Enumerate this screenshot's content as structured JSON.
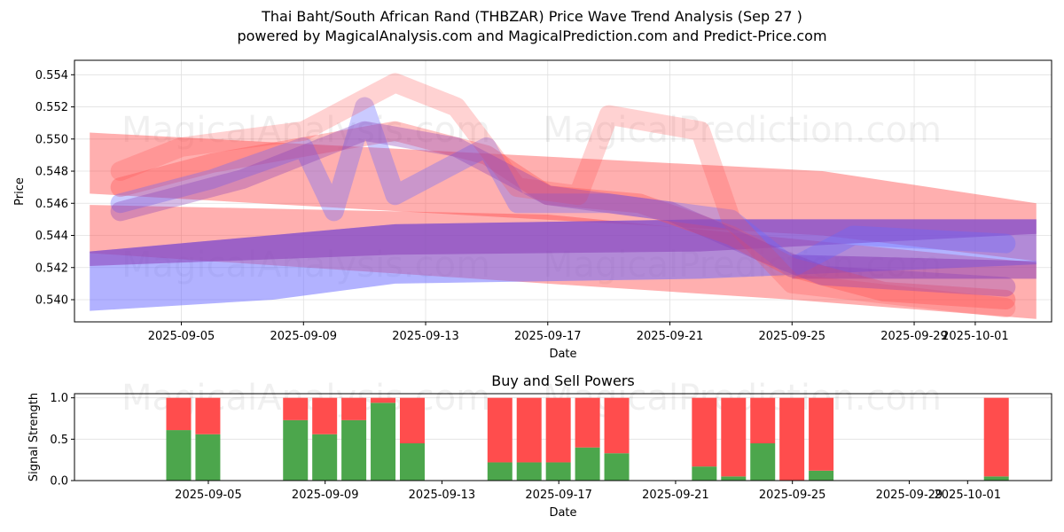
{
  "header": {
    "title": "Thai Baht/South African Rand (THBZAR) Price Wave Trend Analysis (Sep 27 )",
    "subtitle": "powered by MagicalAnalysis.com and MagicalPrediction.com and Predict-Price.com"
  },
  "watermarks": [
    "MagicalAnalysis.com",
    "MagicalPrediction.com"
  ],
  "colors": {
    "bearish_band": "#ff4d4d",
    "bullish_band": "#6666ff",
    "buy": "#4ca64c",
    "sell": "#ff4d4d",
    "grid": "#e0e0e0"
  },
  "chart_data": [
    {
      "type": "area",
      "name": "price-wave",
      "title": "",
      "xlabel": "Date",
      "ylabel": "Price",
      "ylim": [
        0.53862,
        0.5549
      ],
      "xlim": [
        "2025-09-01T12:00",
        "2025-10-03T12:00"
      ],
      "yticks": [
        "0.540",
        "0.542",
        "0.544",
        "0.546",
        "0.548",
        "0.550",
        "0.552",
        "0.554"
      ],
      "xticks": [
        "2025-09-05",
        "2025-09-09",
        "2025-09-13",
        "2025-09-17",
        "2025-09-21",
        "2025-09-25",
        "2025-09-29",
        "2025-10-01"
      ],
      "grid": true,
      "series": [
        {
          "name": "wave-band-1",
          "color": "red",
          "alpha": 0.45,
          "upper": [
            [
              "2025-09-02",
              0.5504
            ],
            [
              "2025-09-26",
              0.548
            ],
            [
              "2025-10-03",
              0.546
            ]
          ],
          "lower": [
            [
              "2025-09-02",
              0.5466
            ],
            [
              "2025-09-26",
              0.544
            ],
            [
              "2025-10-03",
              0.5424
            ]
          ]
        },
        {
          "name": "wave-band-2",
          "color": "red",
          "alpha": 0.45,
          "upper": [
            [
              "2025-09-02",
              0.5459
            ],
            [
              "2025-09-17",
              0.5453
            ],
            [
              "2025-10-03",
              0.5423
            ]
          ],
          "lower": [
            [
              "2025-09-02",
              0.5429
            ],
            [
              "2025-09-17",
              0.541
            ],
            [
              "2025-09-25",
              0.54
            ],
            [
              "2025-10-03",
              0.5388
            ]
          ]
        },
        {
          "name": "wave-band-3",
          "color": "blue",
          "alpha": 0.5,
          "upper": [
            [
              "2025-09-02",
              0.543
            ],
            [
              "2025-09-12",
              0.5447
            ],
            [
              "2025-09-22",
              0.545
            ],
            [
              "2025-10-03",
              0.545
            ]
          ],
          "lower": [
            [
              "2025-09-02",
              0.5393
            ],
            [
              "2025-09-08",
              0.54
            ],
            [
              "2025-09-12",
              0.541
            ],
            [
              "2025-09-22",
              0.5413
            ],
            [
              "2025-10-03",
              0.5422
            ]
          ]
        },
        {
          "name": "wave-band-4",
          "color": "purple",
          "alpha": 0.55,
          "upper": [
            [
              "2025-09-02",
              0.543
            ],
            [
              "2025-09-12",
              0.5447
            ],
            [
              "2025-09-22",
              0.545
            ],
            [
              "2025-10-03",
              0.545
            ]
          ],
          "lower": [
            [
              "2025-09-02",
              0.5421
            ],
            [
              "2025-09-12",
              0.5428
            ],
            [
              "2025-09-22",
              0.543
            ],
            [
              "2025-10-03",
              0.5441
            ]
          ]
        },
        {
          "name": "wave-band-5",
          "color": "purple",
          "alpha": 0.55,
          "upper": [
            [
              "2025-09-25",
              0.5428
            ],
            [
              "2025-10-03",
              0.5424
            ]
          ],
          "lower": [
            [
              "2025-09-25",
              0.5413
            ],
            [
              "2025-10-03",
              0.5413
            ]
          ]
        },
        {
          "name": "wave-line-1",
          "color": "red",
          "alpha": 0.35,
          "points": [
            [
              "2025-09-03",
              0.547
            ],
            [
              "2025-09-06",
              0.5485
            ],
            [
              "2025-09-09",
              0.5495
            ],
            [
              "2025-09-12",
              0.5505
            ],
            [
              "2025-09-15",
              0.549
            ],
            [
              "2025-09-17",
              0.5465
            ],
            [
              "2025-09-20",
              0.546
            ],
            [
              "2025-09-23",
              0.544
            ],
            [
              "2025-09-25",
              0.542
            ],
            [
              "2025-09-28",
              0.5405
            ],
            [
              "2025-10-02",
              0.54
            ]
          ]
        },
        {
          "name": "wave-line-2",
          "color": "blue",
          "alpha": 0.35,
          "points": [
            [
              "2025-09-03",
              0.546
            ],
            [
              "2025-09-06",
              0.5475
            ],
            [
              "2025-09-09",
              0.5495
            ],
            [
              "2025-09-10",
              0.5455
            ],
            [
              "2025-09-11",
              0.552
            ],
            [
              "2025-09-12",
              0.5465
            ],
            [
              "2025-09-15",
              0.5495
            ],
            [
              "2025-09-16",
              0.546
            ],
            [
              "2025-09-19",
              0.546
            ],
            [
              "2025-09-23",
              0.545
            ],
            [
              "2025-09-25",
              0.542
            ],
            [
              "2025-09-27",
              0.544
            ],
            [
              "2025-10-02",
              0.5435
            ]
          ]
        },
        {
          "name": "wave-line-3",
          "color": "red",
          "alpha": 0.25,
          "points": [
            [
              "2025-09-03",
              0.548
            ],
            [
              "2025-09-05",
              0.5495
            ],
            [
              "2025-09-09",
              0.5505
            ],
            [
              "2025-09-12",
              0.5535
            ],
            [
              "2025-09-14",
              0.552
            ],
            [
              "2025-09-16",
              0.547
            ],
            [
              "2025-09-18",
              0.5465
            ],
            [
              "2025-09-19",
              0.5515
            ],
            [
              "2025-09-22",
              0.5505
            ],
            [
              "2025-09-23",
              0.545
            ],
            [
              "2025-09-25",
              0.541
            ],
            [
              "2025-10-02",
              0.5395
            ]
          ]
        },
        {
          "name": "wave-line-4",
          "color": "purple",
          "alpha": 0.35,
          "points": [
            [
              "2025-09-03",
              0.5455
            ],
            [
              "2025-09-07",
              0.5475
            ],
            [
              "2025-09-11",
              0.5505
            ],
            [
              "2025-09-14",
              0.5495
            ],
            [
              "2025-09-17",
              0.5465
            ],
            [
              "2025-09-21",
              0.5455
            ],
            [
              "2025-09-24",
              0.543
            ],
            [
              "2025-09-26",
              0.5415
            ],
            [
              "2025-10-02",
              0.5408
            ]
          ]
        }
      ]
    },
    {
      "type": "bar",
      "name": "buy-sell-powers",
      "title": "Buy and Sell Powers",
      "xlabel": "Date",
      "ylabel": "Signal Strength",
      "ylim": [
        0,
        1.05
      ],
      "yticks": [
        "0.0",
        "0.5",
        "1.0"
      ],
      "xticks": [
        "2025-09-05",
        "2025-09-09",
        "2025-09-13",
        "2025-09-17",
        "2025-09-21",
        "2025-09-25",
        "2025-09-29",
        "2025-10-01"
      ],
      "grid": true,
      "x": [
        "2025-09-04",
        "2025-09-05",
        "2025-09-08",
        "2025-09-09",
        "2025-09-10",
        "2025-09-11",
        "2025-09-12",
        "2025-09-15",
        "2025-09-16",
        "2025-09-17",
        "2025-09-18",
        "2025-09-19",
        "2025-09-22",
        "2025-09-23",
        "2025-09-24",
        "2025-09-25",
        "2025-09-26",
        "2025-10-02"
      ],
      "series": [
        {
          "name": "Buy",
          "values": [
            0.61,
            0.56,
            0.73,
            0.56,
            0.73,
            0.94,
            0.45,
            0.22,
            0.22,
            0.22,
            0.4,
            0.33,
            0.17,
            0.05,
            0.45,
            0.0,
            0.12,
            0.05
          ]
        },
        {
          "name": "Sell",
          "values": [
            0.39,
            0.44,
            0.27,
            0.44,
            0.27,
            0.06,
            0.55,
            0.78,
            0.78,
            0.78,
            0.6,
            0.67,
            0.83,
            0.95,
            0.55,
            1.0,
            0.88,
            0.95
          ]
        }
      ]
    }
  ]
}
